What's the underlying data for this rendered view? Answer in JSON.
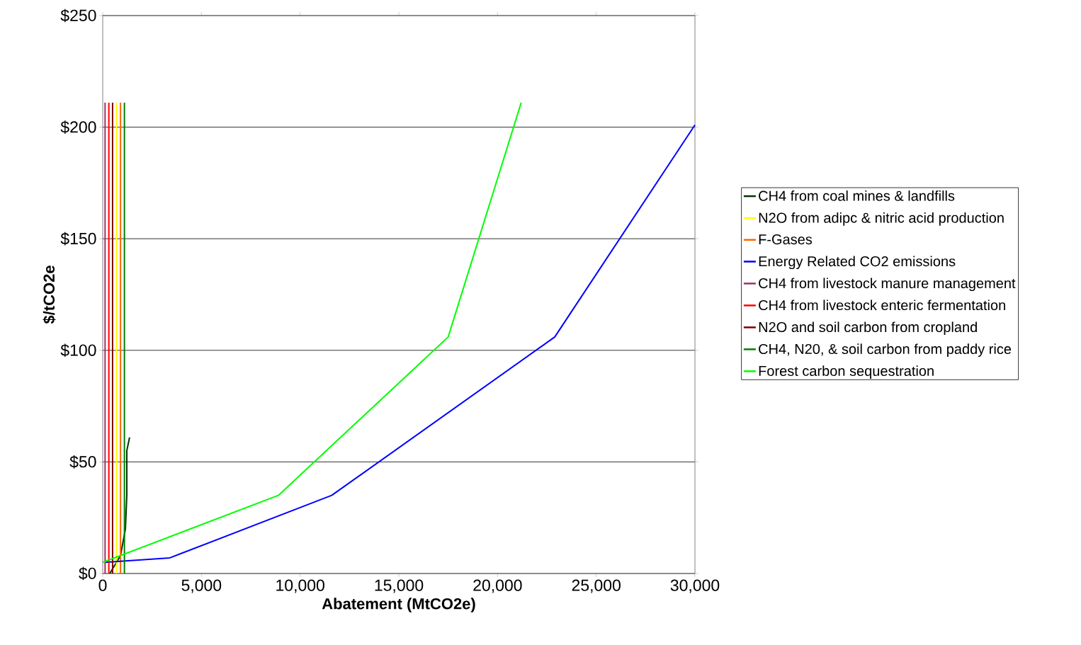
{
  "chart_data": {
    "type": "line",
    "xlabel": "Abatement (MtCO2e)",
    "ylabel": "$/tCO2e",
    "xlim": [
      0,
      30000
    ],
    "ylim": [
      0,
      250
    ],
    "xticks": [
      0,
      {
        "value": 5000,
        "label": "5,000"
      },
      {
        "value": 10000,
        "label": "10,000"
      },
      {
        "value": 15000,
        "label": "15,000"
      },
      {
        "value": 20000,
        "label": "20,000"
      },
      {
        "value": 25000,
        "label": "25,000"
      },
      {
        "value": 30000,
        "label": "30,000"
      }
    ],
    "yticks": [
      {
        "value": 0,
        "label": "$0"
      },
      {
        "value": 50,
        "label": "$50"
      },
      {
        "value": 100,
        "label": "$100"
      },
      {
        "value": 150,
        "label": "$150"
      },
      {
        "value": 200,
        "label": "$200"
      },
      {
        "value": 250,
        "label": "$250"
      }
    ],
    "grid": "y",
    "legend": "right",
    "marker": "none",
    "line_style": "solid",
    "series": [
      {
        "name": "CH4 from coal mines & landfills",
        "color": "#003300",
        "x": [
          360,
          900,
          1150,
          1220,
          1220,
          1360
        ],
        "values": [
          0,
          8,
          20,
          35,
          55,
          61
        ]
      },
      {
        "name": "N2O from adipc & nitric acid production",
        "color": "#ffff00",
        "x": [
          700,
          700
        ],
        "values": [
          0,
          211
        ]
      },
      {
        "name": "F-Gases",
        "color": "#ff6600",
        "x": [
          900,
          900
        ],
        "values": [
          0,
          211
        ]
      },
      {
        "name": "Energy Related CO2 emissions",
        "color": "#0000ff",
        "x": [
          100,
          3400,
          11600,
          22900,
          30000
        ],
        "values": [
          5,
          7,
          35,
          106,
          201
        ]
      },
      {
        "name": "CH4 from livestock manure management",
        "color": "#993366",
        "x": [
          120,
          120
        ],
        "values": [
          0,
          211
        ]
      },
      {
        "name": "CH4 from livestock enteric fermentation",
        "color": "#ff0000",
        "x": [
          310,
          310
        ],
        "values": [
          0,
          211
        ]
      },
      {
        "name": "N2O and soil carbon from cropland",
        "color": "#800000",
        "x": [
          500,
          500
        ],
        "values": [
          0,
          211
        ]
      },
      {
        "name": "CH4, N20, & soil carbon from paddy rice",
        "color": "#008000",
        "x": [
          1100,
          1100
        ],
        "values": [
          0,
          211
        ]
      },
      {
        "name": "Forest carbon sequestration",
        "color": "#00ff00",
        "x": [
          0,
          8900,
          17500,
          21200
        ],
        "values": [
          5,
          35,
          106,
          211
        ]
      }
    ]
  }
}
